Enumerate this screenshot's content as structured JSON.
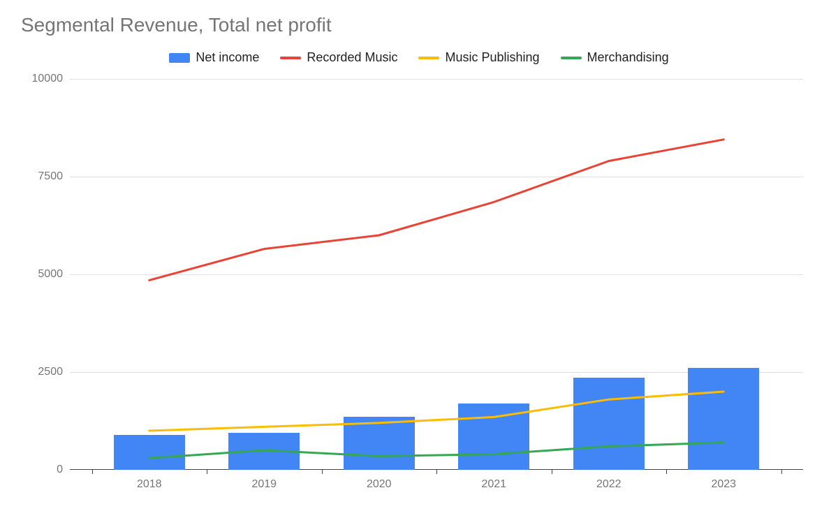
{
  "chart": {
    "title": "Segmental Revenue, Total net profit",
    "title_fontsize": 28,
    "title_color": "#757575",
    "background_color": "#ffffff",
    "grid_color": "#e0e0e0",
    "axis_color": "#424242",
    "text_color": "#757575",
    "legend_text_color": "#212121",
    "ylim": [
      0,
      10000
    ],
    "ytick_step": 2500,
    "yticks": [
      0,
      2500,
      5000,
      7500,
      10000
    ],
    "categories": [
      "2018",
      "2019",
      "2020",
      "2021",
      "2022",
      "2023"
    ],
    "series": [
      {
        "name": "Net income",
        "type": "bar",
        "color": "#4285f4",
        "values": [
          900,
          950,
          1350,
          1700,
          2350,
          2600
        ],
        "bar_width": 0.62
      },
      {
        "name": "Recorded Music",
        "type": "line",
        "color": "#ea4335",
        "line_width": 3,
        "values": [
          4850,
          5650,
          6000,
          6850,
          7900,
          8450
        ]
      },
      {
        "name": "Music Publishing",
        "type": "line",
        "color": "#fbbc04",
        "line_width": 3,
        "values": [
          1000,
          1100,
          1200,
          1350,
          1800,
          2000
        ]
      },
      {
        "name": "Merchandising",
        "type": "line",
        "color": "#34a853",
        "line_width": 3,
        "values": [
          300,
          500,
          350,
          400,
          600,
          700
        ]
      }
    ]
  }
}
